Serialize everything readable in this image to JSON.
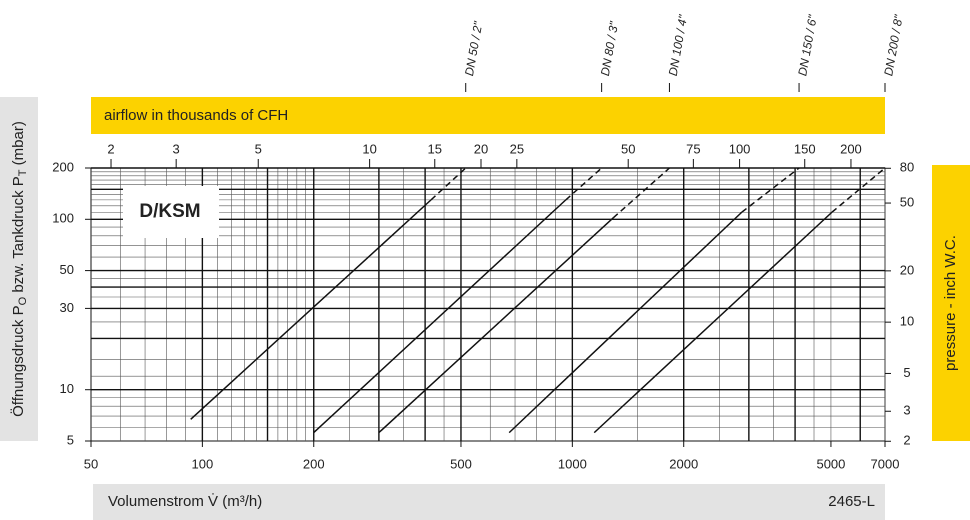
{
  "chart_data": {
    "type": "line",
    "xscale": "log",
    "yscale": "log",
    "title": "D/KSM",
    "top_axis_title": "airflow in thousands of CFH",
    "right_axis_title": "pressure  - inch W.C.",
    "ylabel_parts": [
      "Öffnungsdruck P",
      "O",
      " bzw. Tankdruck P",
      "T",
      " (mbar)"
    ],
    "xlabel": "Volumenstrom V̇  (m³/h)",
    "code": "2465-L",
    "xlim": [
      50,
      7000
    ],
    "xticks": [
      50,
      100,
      200,
      500,
      1000,
      2000,
      5000,
      7000
    ],
    "ylim": [
      5,
      200
    ],
    "yticks": [
      5,
      10,
      30,
      50,
      100,
      200
    ],
    "x2lim": [
      1.7657,
      247.2
    ],
    "x2ticks": [
      2,
      3,
      5,
      10,
      15,
      20,
      25,
      50,
      75,
      100,
      150,
      200
    ],
    "y2lim": [
      2.007,
      80.29
    ],
    "y2ticks": [
      2,
      3,
      5,
      10,
      20,
      50,
      80
    ],
    "x_grid": [
      60,
      70,
      80,
      90,
      110,
      120,
      130,
      140,
      160,
      170,
      180,
      190,
      250,
      350,
      450,
      600,
      700,
      800,
      900,
      1500,
      2500,
      3500,
      4500,
      5000,
      7000
    ],
    "x_grid_major": [
      100,
      150,
      200,
      300,
      400,
      500,
      1000,
      2000,
      3000,
      4000,
      6000
    ],
    "y_grid": [
      6,
      7,
      8,
      9,
      12,
      15,
      25,
      35,
      45,
      60,
      70,
      80,
      90,
      110,
      120,
      130,
      140,
      160,
      170,
      180,
      190
    ],
    "y_grid_major": [
      10,
      20,
      30,
      40,
      50,
      100,
      150,
      200
    ],
    "color": "#111111",
    "series": [
      {
        "name": "DN 50 / 2\"",
        "x": [
          93,
          415
        ],
        "values": [
          6.7,
          130
        ],
        "extension_x": [
          415,
          515
        ],
        "extension_values": [
          130,
          200
        ]
      },
      {
        "name": "DN 80 / 3\"",
        "x": [
          200,
          960
        ],
        "values": [
          5.6,
          130
        ],
        "extension_x": [
          960,
          1200
        ],
        "extension_values": [
          130,
          200
        ]
      },
      {
        "name": "DN 100 / 4\"",
        "x": [
          300,
          1290
        ],
        "values": [
          5.6,
          102
        ],
        "extension_x": [
          1290,
          1830
        ],
        "extension_values": [
          102,
          200
        ]
      },
      {
        "name": "DN 150 / 6\"",
        "x": [
          675,
          2870
        ],
        "values": [
          5.6,
          110
        ],
        "extension_x": [
          2870,
          4100
        ],
        "extension_values": [
          110,
          200
        ]
      },
      {
        "name": "DN 200 / 8\"",
        "x": [
          1146,
          5030
        ],
        "values": [
          5.6,
          110
        ],
        "extension_x": [
          5030,
          7000
        ],
        "extension_values": [
          110,
          200
        ]
      }
    ]
  }
}
